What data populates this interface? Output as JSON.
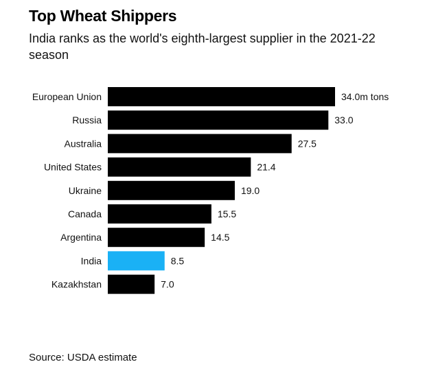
{
  "title": "Top Wheat Shippers",
  "subtitle": "India ranks as the world's eighth-largest supplier in the 2021-22 season",
  "source": "Source: USDA estimate",
  "colors": {
    "bar": "#000000",
    "highlight": "#1ab1f5"
  },
  "chart_data": {
    "type": "bar",
    "orientation": "horizontal",
    "categories": [
      "European Union",
      "Russia",
      "Australia",
      "United States",
      "Ukraine",
      "Canada",
      "Argentina",
      "India",
      "Kazakhstan"
    ],
    "values": [
      34.0,
      33.0,
      27.5,
      21.4,
      19.0,
      15.5,
      14.5,
      8.5,
      7.0
    ],
    "value_labels": [
      "34.0m tons",
      "33.0",
      "27.5",
      "21.4",
      "19.0",
      "15.5",
      "14.5",
      "8.5",
      "7.0"
    ],
    "highlight": "India",
    "xlim": [
      0,
      34.0
    ],
    "grid": false,
    "legend": "none"
  }
}
